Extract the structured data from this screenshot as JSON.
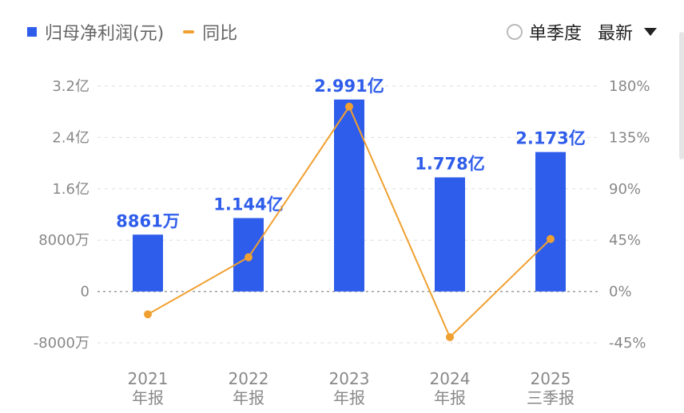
{
  "legend": {
    "bar_label": "归母净利润(元)",
    "line_label": "同比"
  },
  "controls": {
    "quarter_label": "单季度",
    "latest_label": "最新"
  },
  "colors": {
    "bar": "#2F5DEB",
    "line": "#F0A030"
  },
  "chart_data": {
    "type": "bar",
    "categories": [
      [
        "2021",
        "年报"
      ],
      [
        "2022",
        "年报"
      ],
      [
        "2023",
        "年报"
      ],
      [
        "2024",
        "年报"
      ],
      [
        "2025",
        "三季报"
      ]
    ],
    "series": [
      {
        "name": "归母净利润(元)",
        "type": "bar",
        "axis": "left",
        "values": [
          0.8861,
          1.144,
          2.991,
          1.778,
          2.173
        ],
        "unit": "亿",
        "labels": [
          "8861万",
          "1.144亿",
          "2.991亿",
          "1.778亿",
          "2.173亿"
        ]
      },
      {
        "name": "同比",
        "type": "line",
        "axis": "right",
        "values": [
          -20,
          30,
          162,
          -40,
          46
        ],
        "unit": "%"
      }
    ],
    "y_left": {
      "ylim": [
        -0.8,
        3.2
      ],
      "ticks": [
        3.2,
        2.4,
        1.6,
        0.8,
        0,
        -0.8
      ],
      "tick_labels": [
        "3.2亿",
        "2.4亿",
        "1.6亿",
        "8000万",
        "0",
        "-8000万"
      ]
    },
    "y_right": {
      "ylim": [
        -45,
        180
      ],
      "ticks": [
        180,
        135,
        90,
        45,
        0,
        -45
      ],
      "tick_labels": [
        "180%",
        "135%",
        "90%",
        "45%",
        "0%",
        "-45%"
      ]
    },
    "grid": true
  }
}
